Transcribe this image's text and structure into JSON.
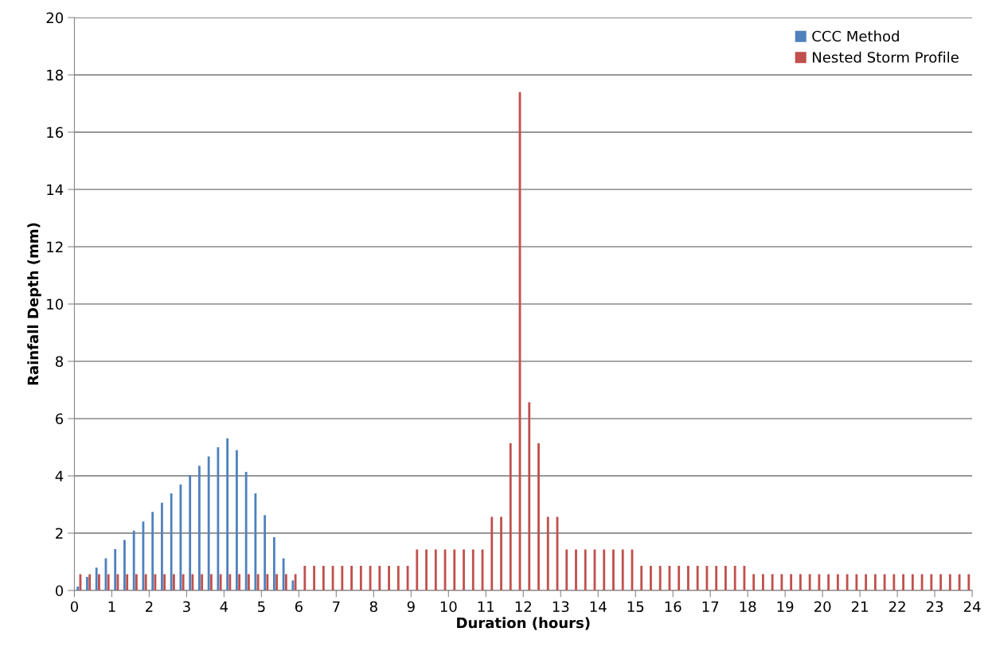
{
  "chart_data": {
    "type": "bar",
    "xlabel": "Duration (hours)",
    "ylabel": "Rainfall Depth (mm)",
    "x": [
      0.125,
      0.375,
      0.625,
      0.875,
      1.125,
      1.375,
      1.625,
      1.875,
      2.125,
      2.375,
      2.625,
      2.875,
      3.125,
      3.375,
      3.625,
      3.875,
      4.125,
      4.375,
      4.625,
      4.875,
      5.125,
      5.375,
      5.625,
      5.875,
      6.125,
      6.375,
      6.625,
      6.875,
      7.125,
      7.375,
      7.625,
      7.875,
      8.125,
      8.375,
      8.625,
      8.875,
      9.125,
      9.375,
      9.625,
      9.875,
      10.125,
      10.375,
      10.625,
      10.875,
      11.125,
      11.375,
      11.625,
      11.875,
      12.125,
      12.375,
      12.625,
      12.875,
      13.125,
      13.375,
      13.625,
      13.875,
      14.125,
      14.375,
      14.625,
      14.875,
      15.125,
      15.375,
      15.625,
      15.875,
      16.125,
      16.375,
      16.625,
      16.875,
      17.125,
      17.375,
      17.625,
      17.875,
      18.125,
      18.375,
      18.625,
      18.875,
      19.125,
      19.375,
      19.625,
      19.875,
      20.125,
      20.375,
      20.625,
      20.875,
      21.125,
      21.375,
      21.625,
      21.875,
      22.125,
      22.375,
      22.625,
      22.875,
      23.125,
      23.375,
      23.625,
      23.875
    ],
    "series": [
      {
        "name": "CCC Method",
        "color": "#4f81bd",
        "values": [
          0.14,
          0.47,
          0.8,
          1.12,
          1.44,
          1.76,
          2.09,
          2.41,
          2.74,
          3.06,
          3.39,
          3.7,
          4.03,
          4.35,
          4.68,
          5.0,
          5.31,
          4.9,
          4.14,
          3.39,
          2.63,
          1.86,
          1.12,
          0.35,
          null,
          null,
          null,
          null,
          null,
          null,
          null,
          null,
          null,
          null,
          null,
          null,
          null,
          null,
          null,
          null,
          null,
          null,
          null,
          null,
          null,
          null,
          null,
          null,
          null,
          null,
          null,
          null,
          null,
          null,
          null,
          null,
          null,
          null,
          null,
          null,
          null,
          null,
          null,
          null,
          null,
          null,
          null,
          null,
          null,
          null,
          null,
          null,
          null,
          null,
          null,
          null,
          null,
          null,
          null,
          null,
          null,
          null,
          null,
          null,
          null,
          null,
          null,
          null,
          null,
          null,
          null,
          null,
          null,
          null,
          null,
          null
        ]
      },
      {
        "name": "Nested Storm Profile",
        "color": "#c0504d",
        "values": [
          0.57,
          0.57,
          0.57,
          0.57,
          0.57,
          0.57,
          0.57,
          0.57,
          0.57,
          0.57,
          0.57,
          0.57,
          0.57,
          0.57,
          0.57,
          0.57,
          0.57,
          0.57,
          0.57,
          0.57,
          0.57,
          0.57,
          0.57,
          0.57,
          0.86,
          0.86,
          0.86,
          0.86,
          0.86,
          0.86,
          0.86,
          0.86,
          0.86,
          0.86,
          0.86,
          0.86,
          1.43,
          1.43,
          1.43,
          1.43,
          1.43,
          1.43,
          1.43,
          1.43,
          2.57,
          2.57,
          5.14,
          17.4,
          6.57,
          5.14,
          2.57,
          2.57,
          1.43,
          1.43,
          1.43,
          1.43,
          1.43,
          1.43,
          1.43,
          1.43,
          0.86,
          0.86,
          0.86,
          0.86,
          0.86,
          0.86,
          0.86,
          0.86,
          0.86,
          0.86,
          0.86,
          0.86,
          0.57,
          0.57,
          0.57,
          0.57,
          0.57,
          0.57,
          0.57,
          0.57,
          0.57,
          0.57,
          0.57,
          0.57,
          0.57,
          0.57,
          0.57,
          0.57,
          0.57,
          0.57,
          0.57,
          0.57,
          0.57,
          0.57,
          0.57,
          0.57
        ]
      }
    ],
    "xlim": [
      0,
      24
    ],
    "xticks": [
      0,
      1,
      2,
      3,
      4,
      5,
      6,
      7,
      8,
      9,
      10,
      11,
      12,
      13,
      14,
      15,
      16,
      17,
      18,
      19,
      20,
      21,
      22,
      23,
      24
    ],
    "ylim": [
      0,
      20
    ],
    "yticks": [
      0,
      2,
      4,
      6,
      8,
      10,
      12,
      14,
      16,
      18,
      20
    ],
    "grid": "y",
    "legend": "top right"
  }
}
